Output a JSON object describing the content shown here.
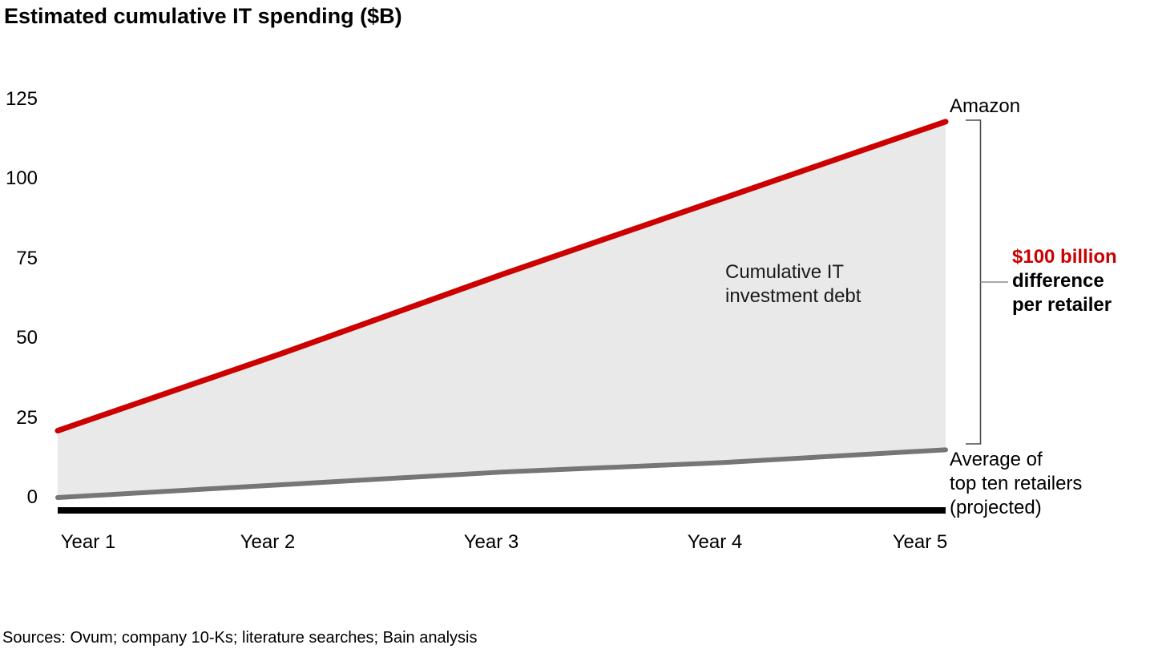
{
  "title": "Estimated cumulative IT spending ($B)",
  "source_note": "Sources: Ovum; company 10-Ks; literature searches; Bain analysis",
  "annotations": {
    "amazon_label": "Amazon",
    "average_label_lines": [
      "Average of",
      "top ten retailers",
      "(projected)"
    ],
    "area_label_lines": [
      "Cumulative IT",
      "investment debt"
    ],
    "difference_highlight": "$100 billion",
    "difference_rest_lines": [
      "difference",
      "per retailer"
    ]
  },
  "colors": {
    "amazon_line": "#cc0000",
    "average_line": "#767676",
    "area_fill": "#e9e9e9",
    "axis": "#000000",
    "bracket": "#4d4d4d",
    "bracket_tick": "#8c8c8c",
    "highlight_text": "#cc0000"
  },
  "chart_data": {
    "type": "area",
    "title": "Estimated cumulative IT spending ($B)",
    "categories": [
      "Year 1",
      "Year 2",
      "Year 3",
      "Year 4",
      "Year 5"
    ],
    "series": [
      {
        "name": "Amazon",
        "values": [
          21,
          45,
          70,
          94,
          118
        ],
        "color": "#cc0000"
      },
      {
        "name": "Average of top ten retailers (projected)",
        "values": [
          0,
          4,
          8,
          11,
          15
        ],
        "color": "#767676"
      }
    ],
    "y_ticks": [
      0,
      25,
      50,
      75,
      100,
      125
    ],
    "ylim": [
      0,
      125
    ],
    "xlabel": "",
    "ylabel": "",
    "grid": false,
    "legend_position": "end-of-line-right",
    "shaded_region_label": "Cumulative IT investment debt",
    "difference_annotation": "$100 billion difference per retailer"
  }
}
